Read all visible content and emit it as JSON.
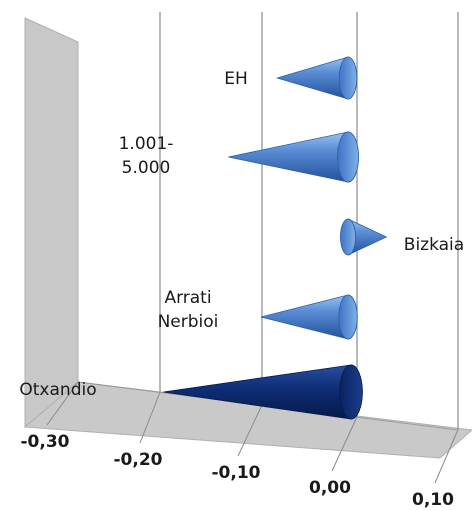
{
  "chart_data": {
    "type": "bar",
    "orientation": "horizontal",
    "style": "3d-cone",
    "categories": [
      "EH",
      "1.001-5.000",
      "Bizkaia",
      "Arrati Nerbioi",
      "Otxandio"
    ],
    "category_labels": [
      [
        "EH"
      ],
      [
        "1.001-",
        "5.000"
      ],
      [
        "Bizkaia"
      ],
      [
        "Arrati",
        "Nerbioi"
      ],
      [
        "Otxandio"
      ]
    ],
    "values": [
      -0.07,
      -0.13,
      0.03,
      -0.09,
      -0.21
    ],
    "xlim": [
      -0.3,
      0.1
    ],
    "xticks": [
      "-0,30",
      "-0,20",
      "-0,10",
      "0,00",
      "0,10"
    ],
    "colors": {
      "light": "#5b8fd6",
      "light_edge": "#2e5fa8",
      "dark": "#0d2a6e",
      "dark_edge": "#061a4a",
      "wall": "#c8c8c8",
      "grid": "#8a8a8a"
    },
    "grid": true,
    "legend": "none"
  }
}
